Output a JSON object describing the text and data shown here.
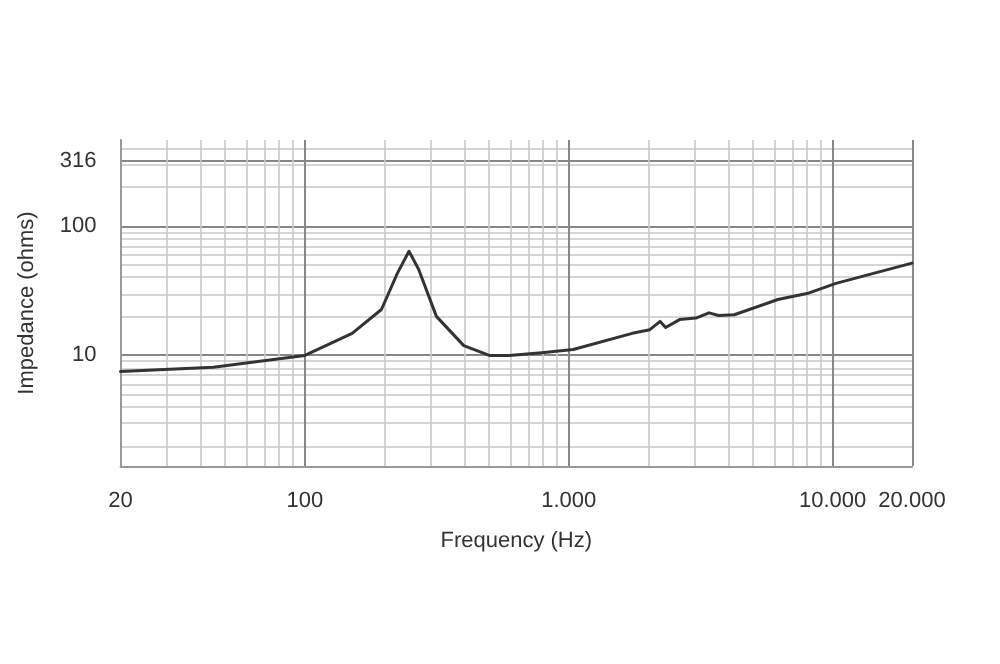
{
  "chart_data": {
    "type": "line",
    "xlabel": "Frequency (Hz)",
    "ylabel": "Impedance (ohms)",
    "log": "xy",
    "grid": true,
    "marker": "none",
    "line_style": "solid",
    "xlim": [
      20,
      20000
    ],
    "xticks": [
      20,
      100,
      {
        "value": 1000,
        "label": "1.000"
      },
      {
        "value": 10000,
        "label": "10.000"
      },
      {
        "value": 20000,
        "label": "20.000"
      }
    ],
    "ylim": [
      1.4,
      460
    ],
    "yticks": [
      10,
      100,
      316
    ],
    "series": [
      {
        "color": "#333333",
        "x": [
          20,
          45,
          100,
          151,
          195,
          224,
          248,
          270,
          315,
          400,
          500,
          594,
          790,
          1040,
          1740,
          2030,
          2220,
          2330,
          2630,
          3030,
          3400,
          3700,
          4240,
          6200,
          8000,
          10300,
          20000
        ],
        "values": [
          7.5,
          8.1,
          10,
          14.8,
          22.6,
          43,
          63.7,
          46,
          20,
          11.9,
          10,
          10,
          10.5,
          11.1,
          14.8,
          15.8,
          18.3,
          16.4,
          18.9,
          19.4,
          21.3,
          20.3,
          20.6,
          27,
          30,
          36,
          51.6
        ]
      }
    ]
  }
}
